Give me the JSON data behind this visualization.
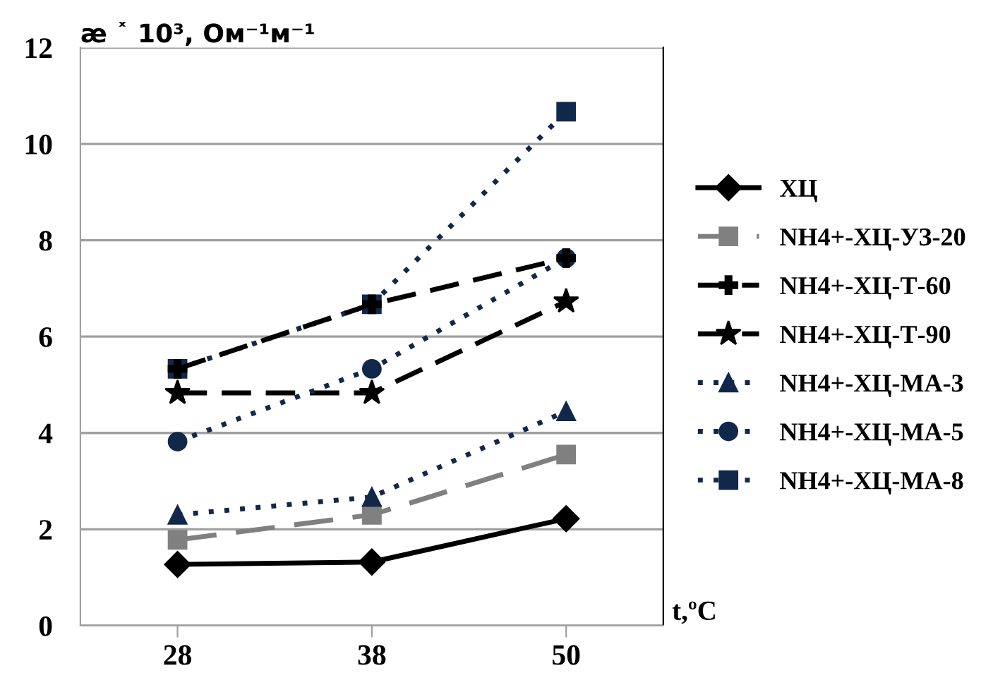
{
  "chart_data": {
    "type": "line",
    "ylabel": "æ ˟ 10³, Ом⁻¹м⁻¹",
    "xlabel": "t,ºC",
    "categories": [
      "28",
      "38",
      "50"
    ],
    "ylim": [
      0,
      12
    ],
    "yticks": [
      0,
      2,
      4,
      6,
      8,
      10,
      12
    ],
    "grid": "y",
    "legend": "right",
    "series": [
      {
        "name": "ХЦ",
        "color": "#000000",
        "marker": "diamond",
        "line_style": "solid",
        "values": [
          1.27,
          1.32,
          2.22
        ]
      },
      {
        "name": "NH4+-ХЦ-УЗ-20",
        "color": "#808080",
        "marker": "square",
        "line_style": "dashed",
        "values": [
          1.78,
          2.3,
          3.55
        ]
      },
      {
        "name": "NH4+-ХЦ-Т-60",
        "color": "#000000",
        "marker": "cross",
        "line_style": "dashed",
        "values": [
          5.33,
          6.67,
          7.63
        ]
      },
      {
        "name": "NH4+-ХЦ-Т-90",
        "color": "#000000",
        "marker": "star",
        "line_style": "dashed",
        "values": [
          4.83,
          4.83,
          6.73
        ]
      },
      {
        "name": "NH4+-ХЦ-МА-3",
        "color": "#12284a",
        "marker": "triangle",
        "line_style": "dotted",
        "values": [
          2.3,
          2.67,
          4.45
        ]
      },
      {
        "name": "NH4+-ХЦ-МА-5",
        "color": "#12284a",
        "marker": "circle",
        "line_style": "dotted",
        "values": [
          3.82,
          5.33,
          7.63
        ]
      },
      {
        "name": "NH4+-ХЦ-МА-8",
        "color": "#12284a",
        "marker": "square",
        "line_style": "dotted",
        "values": [
          5.33,
          6.67,
          10.67
        ]
      }
    ]
  }
}
